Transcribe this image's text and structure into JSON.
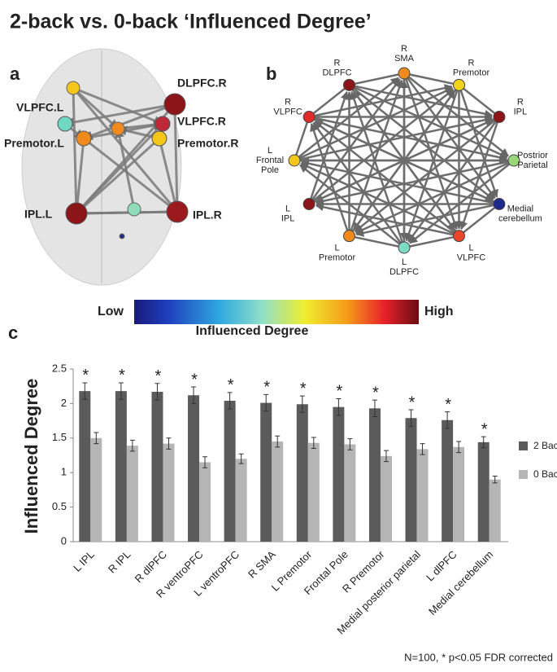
{
  "title": "2-back vs.   0-back  ‘Influenced Degree’",
  "panel_a": {
    "letter": "a",
    "nodes": [
      {
        "label": "DLPFC.R",
        "color": "#8b1518"
      },
      {
        "label": "VLPFC.L",
        "color": "#6fd8c0"
      },
      {
        "label": "VLPFC.R",
        "color": "#c0283a"
      },
      {
        "label": "Premotor.L",
        "color": "#f08a1c"
      },
      {
        "label": "Premotor.R",
        "color": "#f3c619"
      },
      {
        "label": "IPL.L",
        "color": "#8b1518"
      },
      {
        "label": "IPL.R",
        "color": "#9b1a1e"
      }
    ]
  },
  "panel_b": {
    "letter": "b",
    "nodes": [
      {
        "label": [
          "R",
          "SMA"
        ],
        "color": "#f08a1c"
      },
      {
        "label": [
          "R",
          "Premotor"
        ],
        "color": "#f3d21a"
      },
      {
        "label": [
          "R",
          "IPL"
        ],
        "color": "#8b1518"
      },
      {
        "label": [
          "Postrior",
          "Parietal"
        ],
        "color": "#9ad67a"
      },
      {
        "label": [
          "Medial",
          "cerebellum"
        ],
        "color": "#1e2a8a"
      },
      {
        "label": [
          "L",
          "VLPFC"
        ],
        "color": "#e8452a"
      },
      {
        "label": [
          "L",
          "DLPFC"
        ],
        "color": "#7fdcc4"
      },
      {
        "label": [
          "L",
          "Premotor"
        ],
        "color": "#f08a1c"
      },
      {
        "label": [
          "L",
          "IPL"
        ],
        "color": "#8b1518"
      },
      {
        "label": [
          "L",
          "Frontal",
          "Pole"
        ],
        "color": "#f3c619"
      },
      {
        "label": [
          "R",
          "VLPFC"
        ],
        "color": "#e02a2a"
      },
      {
        "label": [
          "R",
          "DLPFC"
        ],
        "color": "#8b1518"
      }
    ]
  },
  "colorbar": {
    "low": "Low",
    "high": "High",
    "label": "Influenced Degree"
  },
  "footnote": "N=100,  * p<0.05 FDR corrected",
  "chart_data": {
    "type": "bar",
    "letter": "c",
    "y_label": "Influenced Degree",
    "categories": [
      "L IPL",
      "R IPL",
      "R dlPFC",
      "R ventroPFC",
      "L ventroPFC",
      "R SMA",
      "L Premotor",
      "Frontal Pole",
      "R Premotor",
      "Medial posterior parietal",
      "L dlPFC",
      "Medial cerebellum"
    ],
    "series": [
      {
        "name": "2 Back",
        "color": "#5b5b5b",
        "values": [
          2.18,
          2.18,
          2.17,
          2.12,
          2.04,
          2.01,
          1.99,
          1.95,
          1.93,
          1.79,
          1.76,
          1.44
        ],
        "errors": [
          0.12,
          0.12,
          0.12,
          0.12,
          0.12,
          0.12,
          0.12,
          0.12,
          0.12,
          0.12,
          0.12,
          0.08
        ]
      },
      {
        "name": "0 Back",
        "color": "#b5b5b5",
        "values": [
          1.5,
          1.39,
          1.42,
          1.15,
          1.2,
          1.45,
          1.43,
          1.41,
          1.24,
          1.34,
          1.37,
          0.9
        ],
        "errors": [
          0.08,
          0.08,
          0.08,
          0.08,
          0.07,
          0.08,
          0.08,
          0.08,
          0.08,
          0.08,
          0.08,
          0.05
        ]
      }
    ],
    "significance": [
      "*",
      "*",
      "*",
      "*",
      "*",
      "*",
      "*",
      "*",
      "*",
      "*",
      "*",
      "*"
    ],
    "ylim": [
      0,
      2.5
    ],
    "yticks": [
      0,
      0.5,
      1,
      1.5,
      2,
      2.5
    ],
    "legend": "right"
  }
}
